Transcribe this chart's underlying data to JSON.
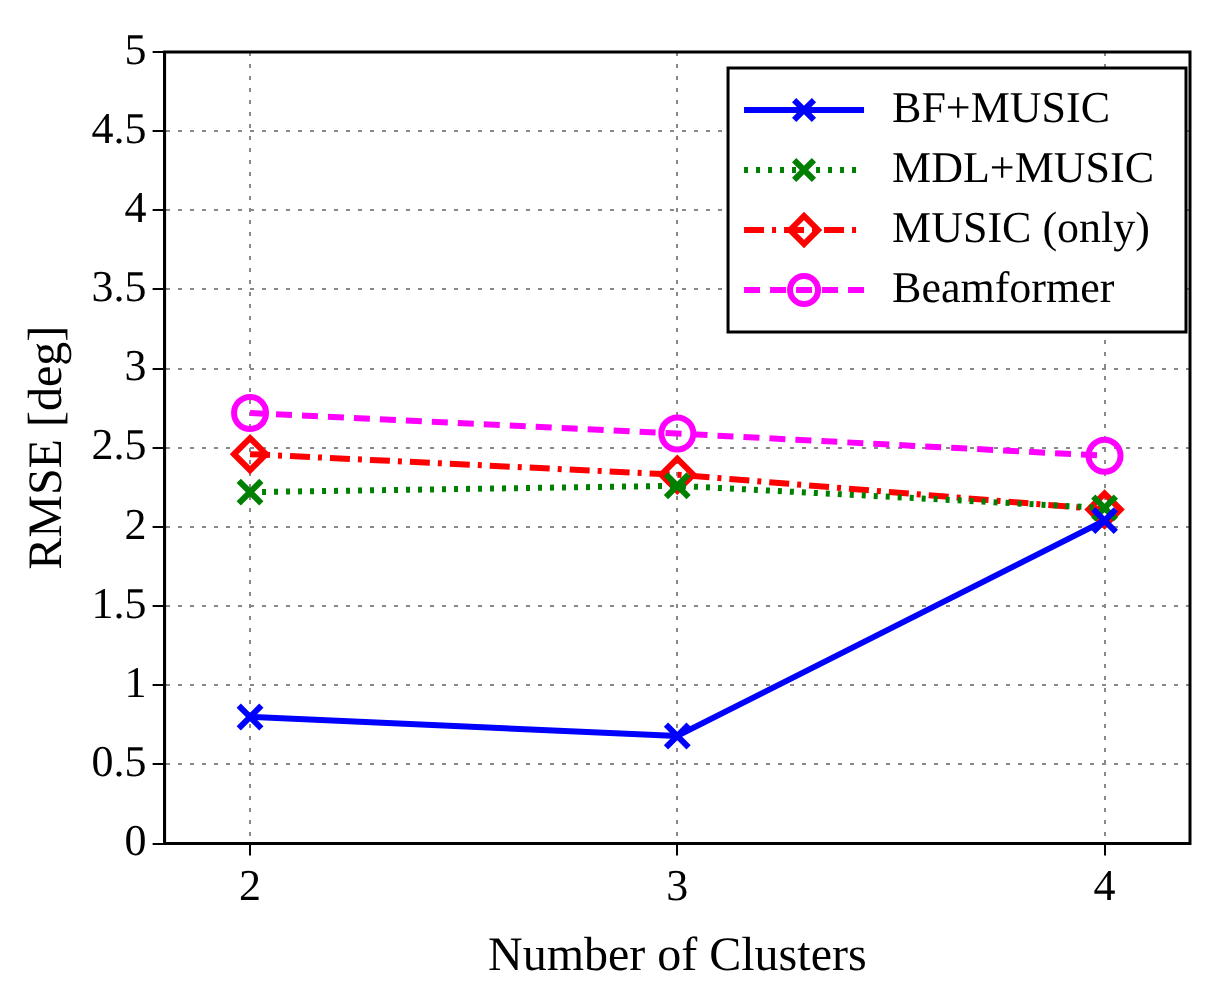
{
  "chart_data": {
    "type": "line",
    "xlabel": "Number of Clusters",
    "ylabel": "RMSE [deg]",
    "x": [
      2,
      3,
      4
    ],
    "xlim": [
      1.8,
      4.2
    ],
    "xticks": [
      2,
      3,
      4
    ],
    "ylim": [
      0,
      5
    ],
    "yticks": [
      0,
      0.5,
      1,
      1.5,
      2,
      2.5,
      3,
      3.5,
      4,
      4.5,
      5
    ],
    "grid": true,
    "legend": "top right",
    "series": [
      {
        "name": "BF+MUSIC",
        "color": "#0000ff",
        "values": [
          0.8,
          0.68,
          2.04
        ],
        "marker": "cross",
        "line_style": "solid"
      },
      {
        "name": "MDL+MUSIC",
        "color": "#008000",
        "values": [
          2.22,
          2.26,
          2.12
        ],
        "marker": "cross",
        "line_style": "dotted"
      },
      {
        "name": "MUSIC (only)",
        "color": "#ff0000",
        "values": [
          2.46,
          2.33,
          2.11
        ],
        "marker": "diamond",
        "line_style": "dashdot"
      },
      {
        "name": "Beamformer",
        "color": "#ff00ff",
        "values": [
          2.72,
          2.59,
          2.45
        ],
        "marker": "circle",
        "line_style": "dashed"
      }
    ]
  }
}
